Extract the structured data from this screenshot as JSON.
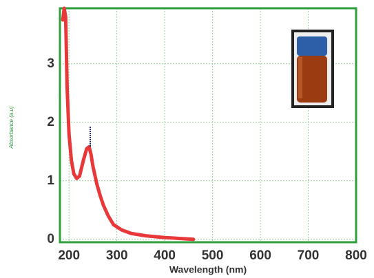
{
  "chart_data": {
    "type": "line",
    "x_label": "Wavelength (nm)",
    "y_label": "Absorbance (a.u)",
    "series": [
      {
        "color": "#e8383a",
        "x": [
          187,
          190,
          193,
          196,
          200,
          205,
          210,
          216,
          222,
          230,
          237,
          242,
          246,
          250,
          258,
          265,
          272,
          282,
          293,
          310,
          330,
          360,
          400,
          430,
          460
        ],
        "values": [
          3.75,
          3.95,
          3.8,
          2.6,
          1.8,
          1.35,
          1.12,
          1.04,
          1.08,
          1.35,
          1.55,
          1.58,
          1.45,
          1.25,
          0.95,
          0.75,
          0.58,
          0.4,
          0.25,
          0.16,
          0.1,
          0.06,
          0.03,
          0.015,
          0.0
        ]
      }
    ],
    "xlim": [
      181,
      800
    ],
    "ylim": [
      -0.05,
      3.95
    ],
    "xticks": [
      200,
      300,
      400,
      500,
      600,
      700,
      800
    ],
    "yticks": [
      0,
      1,
      2,
      3
    ],
    "grid": true,
    "frame_color": "#2f9e3c"
  }
}
